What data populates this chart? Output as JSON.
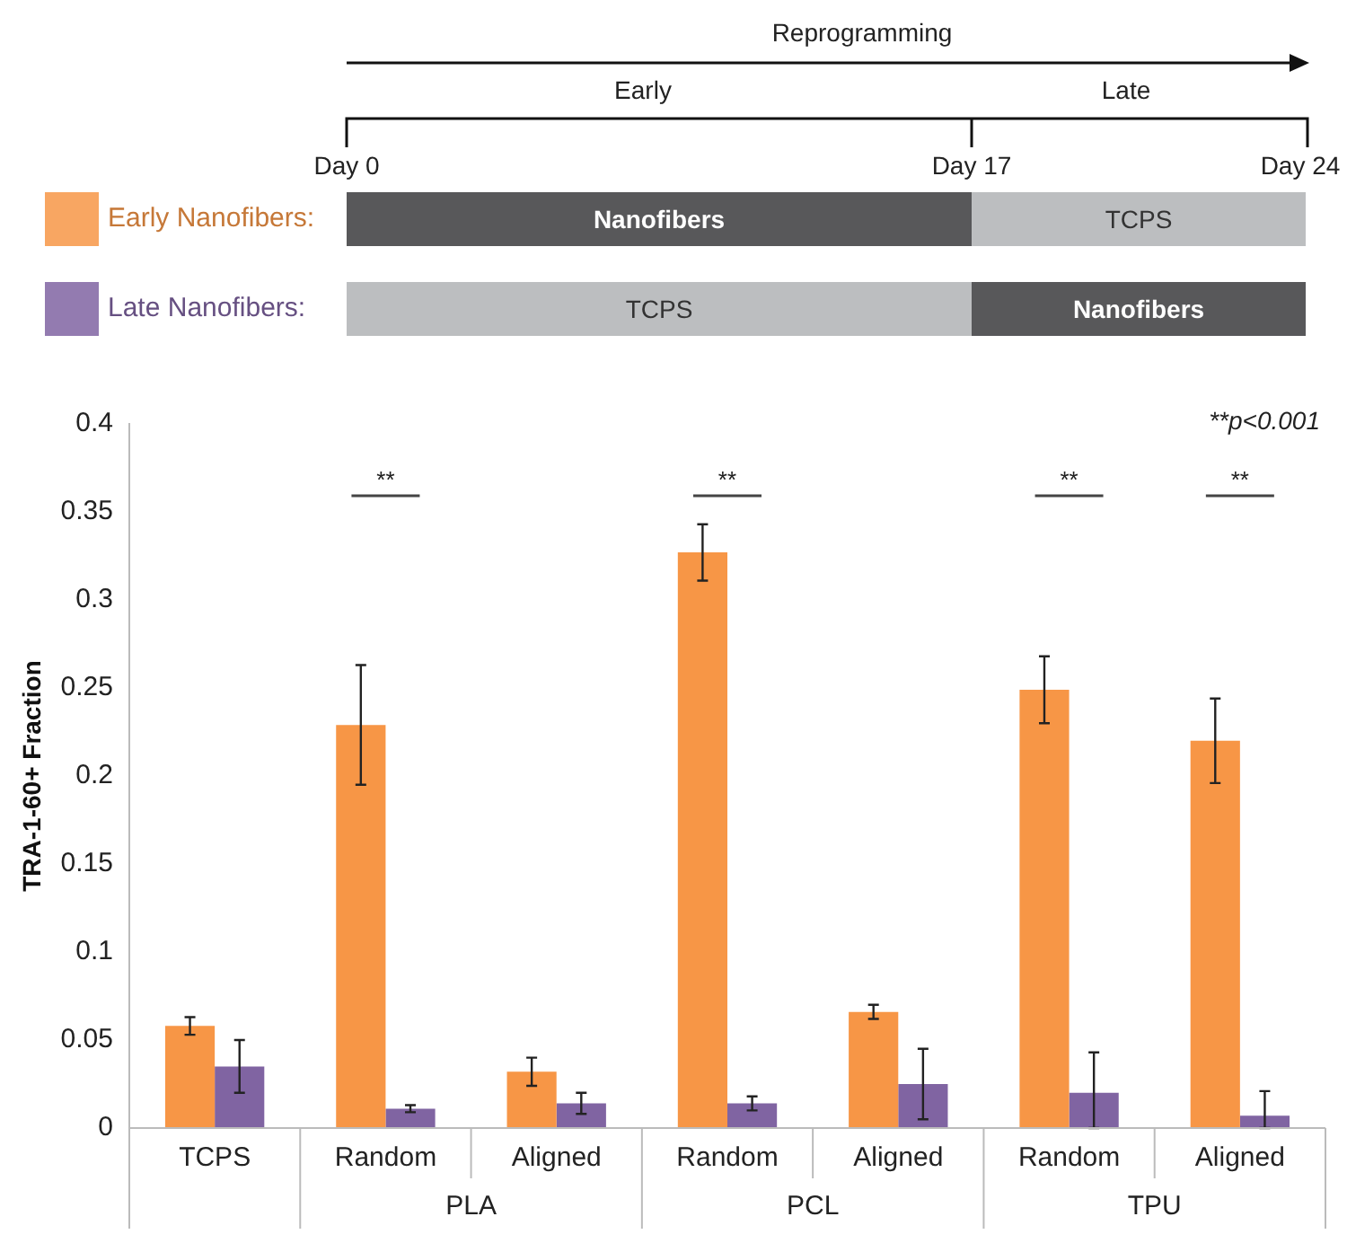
{
  "chart_data": {
    "type": "bar",
    "ylabel": "TRA-1-60+ Fraction",
    "categories": [
      "TCPS",
      "Random",
      "Aligned",
      "Random",
      "Aligned",
      "Random",
      "Aligned"
    ],
    "series": [
      {
        "name": "Early Nanofibers:",
        "color": "#f79646",
        "values": [
          0.058,
          0.229,
          0.032,
          0.327,
          0.066,
          0.249,
          0.22
        ],
        "errors": [
          0.005,
          0.034,
          0.008,
          0.016,
          0.004,
          0.019,
          0.024
        ]
      },
      {
        "name": "Late Nanofibers:",
        "color": "#8064a2",
        "values": [
          0.035,
          0.011,
          0.014,
          0.014,
          0.025,
          0.02,
          0.007
        ],
        "errors": [
          0.015,
          0.002,
          0.006,
          0.004,
          0.02,
          [
            0,
            0.043
          ],
          [
            0,
            0.021
          ]
        ]
      }
    ],
    "ylim": [
      0,
      0.4
    ],
    "yticks": [
      0,
      0.05,
      0.1,
      0.15,
      0.2,
      0.25,
      0.3,
      0.35,
      0.4
    ],
    "grid": false,
    "legend": "top left",
    "annotations": [
      "Reprogramming",
      "Early",
      "Late",
      "Day 0",
      "Day 17",
      "Day 24",
      "Nanofibers",
      "TCPS",
      "TCPS",
      "Nanofibers",
      "**p<0.001",
      "**",
      "**",
      "**",
      "**",
      "PLA",
      "PCL",
      "TPU"
    ]
  }
}
